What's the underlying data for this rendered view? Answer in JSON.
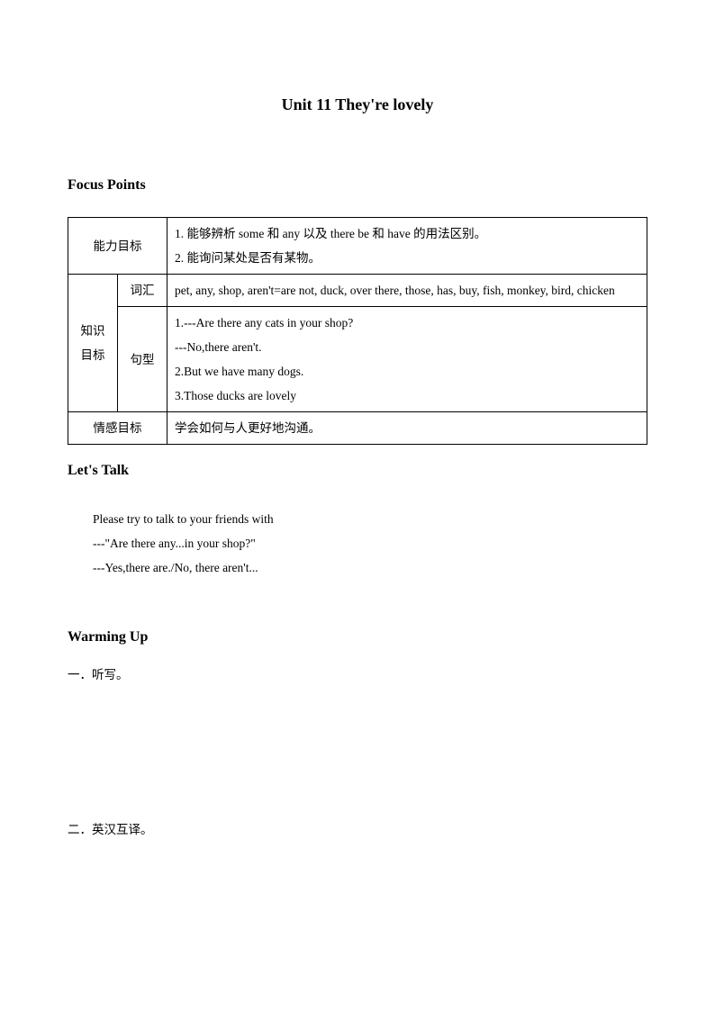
{
  "title": "Unit 11 They're lovely",
  "focus_points": {
    "heading": "Focus Points",
    "rows": {
      "ability": {
        "label": "能力目标",
        "content": "1. 能够辨析 some 和 any 以及 there be 和 have 的用法区别。\n2. 能询问某处是否有某物。"
      },
      "knowledge": {
        "label": "知识目标",
        "vocab_label": "词汇",
        "vocab_content": "pet, any, shop, aren't=are not, duck, over there, those, has, buy, fish, monkey, bird, chicken",
        "sentence_label": "句型",
        "sentence_content": "1.---Are there any cats in your shop?\n  ---No,there aren't.\n2.But we have many dogs.\n3.Those ducks are lovely"
      },
      "emotion": {
        "label": "情感目标",
        "content": "学会如何与人更好地沟通。"
      }
    }
  },
  "lets_talk": {
    "heading": "Let's Talk",
    "lines": [
      "Please try to talk to your friends with",
      "---\"Are there any...in your shop?\"",
      "---Yes,there are./No, there aren't..."
    ]
  },
  "warming_up": {
    "heading": "Warming Up",
    "item1": "一．听写。",
    "item2": "二．英汉互译。"
  }
}
